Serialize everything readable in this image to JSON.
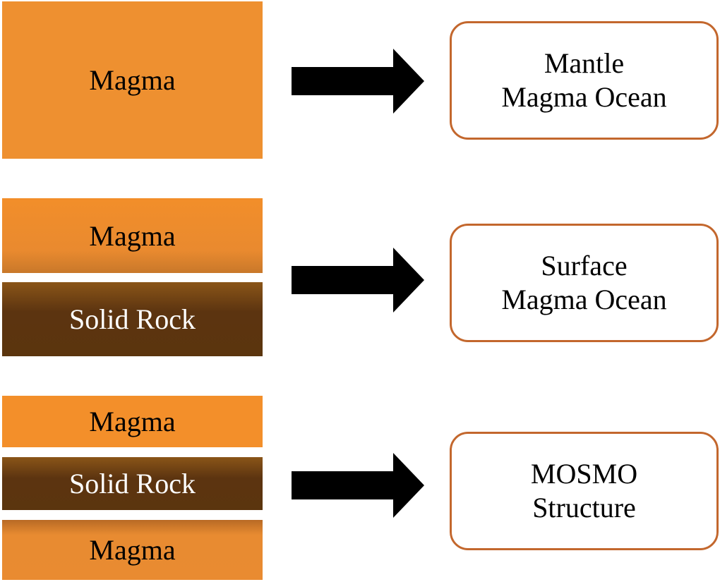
{
  "rows": [
    {
      "layers": [
        "Magma"
      ],
      "result": [
        "Mantle",
        "Magma Ocean"
      ]
    },
    {
      "layers": [
        "Magma",
        "Solid Rock"
      ],
      "result": [
        "Surface",
        "Magma Ocean"
      ]
    },
    {
      "layers": [
        "Magma",
        "Solid Rock",
        "Magma"
      ],
      "result": [
        "MOSMO",
        "Structure"
      ]
    }
  ],
  "colors": {
    "magma": "#ee9030",
    "solid_rock": "#5c3410",
    "box_border": "#c3672d",
    "arrow": "#000000"
  }
}
